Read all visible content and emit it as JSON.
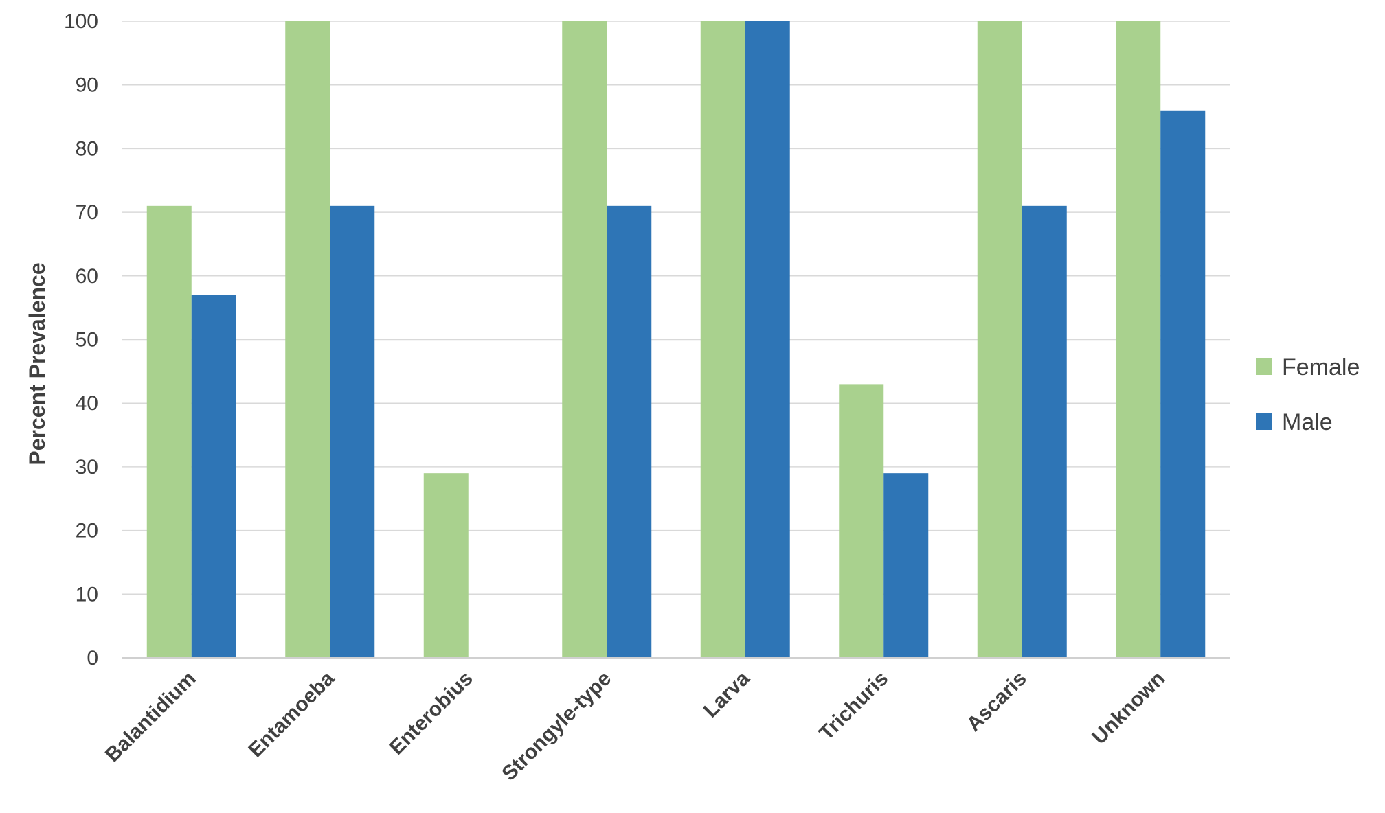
{
  "chart_data": {
    "type": "bar",
    "title": "",
    "xlabel": "",
    "ylabel": "Percent Prevalence",
    "ylim": [
      0,
      100
    ],
    "yticks": [
      0,
      10,
      20,
      30,
      40,
      50,
      60,
      70,
      80,
      90,
      100
    ],
    "grid": true,
    "legend_position": "right",
    "categories": [
      "Balantidium",
      "Entamoeba",
      "Enterobius",
      "Strongyle-type",
      "Larva",
      "Trichuris",
      "Ascaris",
      "Unknown"
    ],
    "series": [
      {
        "name": "Female",
        "color": "#a9d18e",
        "values": [
          71,
          100,
          29,
          100,
          100,
          43,
          100,
          100
        ]
      },
      {
        "name": "Male",
        "color": "#2e75b6",
        "values": [
          57,
          71,
          0,
          71,
          100,
          29,
          71,
          86
        ]
      }
    ]
  }
}
